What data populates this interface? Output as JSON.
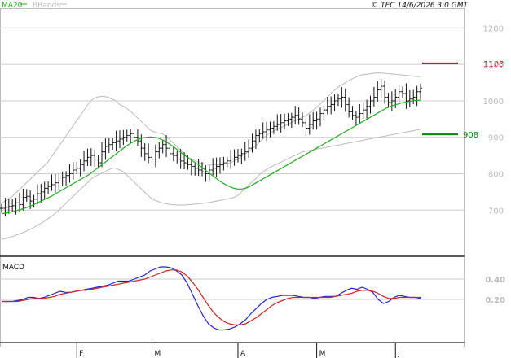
{
  "header": {
    "ma_label": "MA20",
    "bb_label": "BBands",
    "copyright": "© TEC 14/6/2026 3:0 GMT"
  },
  "chart_data": [
    {
      "type": "ohlc",
      "panel": "price",
      "x_labels": [
        {
          "label": "F",
          "index": 21
        },
        {
          "label": "M",
          "index": 42
        },
        {
          "label": "A",
          "index": 66
        },
        {
          "label": "M",
          "index": 88
        },
        {
          "label": "J",
          "index": 110
        }
      ],
      "ylim": [
        580,
        1250
      ],
      "yticks": [
        700,
        800,
        900,
        1000,
        1100,
        1200
      ],
      "ticks_shown_on_axis": [
        "700",
        "800",
        "900",
        "1000",
        "1100",
        "1200"
      ],
      "levels": [
        {
          "name": "resistance",
          "label": "1103",
          "value": 1103,
          "color": "#cc0000"
        },
        {
          "name": "support",
          "label": "908",
          "value": 908,
          "color": "#008800"
        }
      ],
      "series": [
        {
          "name": "MA20",
          "color": "#22aa22",
          "values": [
            690,
            692,
            694,
            696,
            699,
            702,
            705,
            709,
            713,
            718,
            723,
            728,
            733,
            738,
            744,
            750,
            756,
            762,
            768,
            774,
            780,
            786,
            792,
            798,
            806,
            814,
            822,
            830,
            838,
            846,
            854,
            862,
            870,
            878,
            884,
            890,
            895,
            898,
            900,
            901,
            900,
            898,
            894,
            889,
            882,
            875,
            867,
            859,
            851,
            843,
            836,
            829,
            822,
            814,
            806,
            798,
            790,
            782,
            775,
            769,
            764,
            760,
            758,
            758,
            760,
            764,
            770,
            776,
            782,
            788,
            794,
            800,
            806,
            812,
            818,
            824,
            830,
            836,
            842,
            848,
            854,
            860,
            866,
            872,
            878,
            884,
            890,
            896,
            902,
            908,
            914,
            920,
            926,
            932,
            938,
            944,
            950,
            956,
            962,
            968,
            974,
            980,
            984,
            988,
            991,
            994,
            996,
            998,
            1000,
            1001,
            1002
          ]
        },
        {
          "name": "BBands upper",
          "values": [
            720,
            725,
            732,
            740,
            750,
            760,
            770,
            780,
            790,
            800,
            810,
            820,
            830,
            845,
            860,
            875,
            890,
            905,
            920,
            935,
            950,
            965,
            980,
            995,
            1005,
            1010,
            1012,
            1012,
            1010,
            1005,
            1000,
            990,
            985,
            978,
            970,
            960,
            950,
            940,
            930,
            920,
            915,
            912,
            910,
            905,
            895,
            885,
            875,
            865,
            855,
            845,
            840,
            835,
            830,
            828,
            826,
            825,
            825,
            825,
            826,
            828,
            830,
            835,
            840,
            848,
            855,
            862,
            870,
            880,
            890,
            900,
            908,
            915,
            920,
            925,
            930,
            935,
            940,
            945,
            950,
            955,
            960,
            968,
            976,
            985,
            995,
            1005,
            1015,
            1025,
            1035,
            1042,
            1048,
            1055,
            1060,
            1065,
            1070,
            1072,
            1073,
            1075,
            1076,
            1077,
            1076,
            1075,
            1074,
            1073,
            1072,
            1071,
            1070,
            1069,
            1068,
            1067,
            1066
          ]
        },
        {
          "name": "BBands lower",
          "values": [
            620,
            622,
            625,
            628,
            632,
            636,
            640,
            645,
            650,
            656,
            662,
            668,
            675,
            682,
            690,
            700,
            710,
            720,
            730,
            740,
            750,
            760,
            770,
            780,
            790,
            795,
            800,
            805,
            810,
            815,
            815,
            810,
            805,
            795,
            785,
            775,
            765,
            755,
            745,
            735,
            728,
            724,
            720,
            718,
            716,
            715,
            714,
            714,
            714,
            715,
            716,
            717,
            718,
            719,
            720,
            722,
            724,
            726,
            728,
            730,
            732,
            735,
            740,
            750,
            760,
            770,
            780,
            790,
            800,
            808,
            815,
            820,
            825,
            830,
            835,
            840,
            845,
            850,
            855,
            860,
            862,
            864,
            866,
            868,
            870,
            872,
            874,
            876,
            878,
            880,
            882,
            884,
            886,
            888,
            890,
            892,
            894,
            896,
            898,
            900,
            902,
            904,
            906,
            908,
            910,
            912,
            914,
            916,
            918,
            920,
            922
          ]
        },
        {
          "name": "Close",
          "values": [
            705,
            708,
            710,
            712,
            720,
            715,
            735,
            738,
            725,
            730,
            745,
            750,
            760,
            765,
            770,
            775,
            780,
            790,
            795,
            800,
            810,
            815,
            825,
            835,
            845,
            850,
            840,
            830,
            860,
            875,
            880,
            885,
            890,
            895,
            900,
            905,
            910,
            900,
            890,
            870,
            855,
            845,
            840,
            860,
            870,
            880,
            870,
            855,
            850,
            840,
            835,
            830,
            825,
            820,
            815,
            810,
            805,
            800,
            810,
            815,
            820,
            825,
            830,
            835,
            840,
            845,
            850,
            855,
            860,
            870,
            890,
            905,
            910,
            915,
            920,
            925,
            930,
            935,
            940,
            945,
            950,
            955,
            960,
            950,
            940,
            925,
            935,
            945,
            950,
            965,
            975,
            985,
            990,
            1000,
            1005,
            1010,
            990,
            970,
            960,
            955,
            965,
            975,
            985,
            1000,
            1010,
            1030,
            1040,
            1010,
            995,
            1000,
            1010,
            1025,
            1020,
            1000,
            1005,
            1010,
            1025,
            1035
          ]
        }
      ]
    },
    {
      "type": "line",
      "panel": "macd",
      "title": "MACD",
      "ylim": [
        -0.2,
        0.6
      ],
      "yticks": [
        0.2,
        0.4
      ],
      "ticks_shown_on_axis": [
        "0.20",
        "0.40"
      ],
      "series": [
        {
          "name": "MACD",
          "color": "#2222cc",
          "values": [
            0.18,
            0.18,
            0.18,
            0.19,
            0.2,
            0.22,
            0.22,
            0.21,
            0.22,
            0.24,
            0.26,
            0.28,
            0.27,
            0.27,
            0.28,
            0.29,
            0.3,
            0.31,
            0.32,
            0.33,
            0.34,
            0.36,
            0.38,
            0.38,
            0.38,
            0.4,
            0.42,
            0.44,
            0.48,
            0.5,
            0.52,
            0.52,
            0.51,
            0.48,
            0.44,
            0.36,
            0.25,
            0.14,
            0.04,
            -0.04,
            -0.08,
            -0.1,
            -0.1,
            -0.09,
            -0.07,
            -0.04,
            0.0,
            0.06,
            0.11,
            0.16,
            0.2,
            0.22,
            0.23,
            0.24,
            0.24,
            0.24,
            0.23,
            0.22,
            0.22,
            0.21,
            0.22,
            0.23,
            0.23,
            0.23,
            0.26,
            0.29,
            0.31,
            0.3,
            0.32,
            0.3,
            0.27,
            0.2,
            0.16,
            0.18,
            0.22,
            0.24,
            0.23,
            0.22,
            0.22,
            0.21
          ]
        },
        {
          "name": "Signal",
          "color": "#cc2222",
          "values": [
            0.18,
            0.18,
            0.18,
            0.18,
            0.19,
            0.2,
            0.21,
            0.21,
            0.21,
            0.22,
            0.23,
            0.25,
            0.26,
            0.27,
            0.28,
            0.29,
            0.29,
            0.3,
            0.31,
            0.32,
            0.33,
            0.34,
            0.35,
            0.36,
            0.37,
            0.38,
            0.39,
            0.4,
            0.42,
            0.44,
            0.46,
            0.48,
            0.49,
            0.49,
            0.47,
            0.43,
            0.37,
            0.3,
            0.22,
            0.14,
            0.07,
            0.02,
            -0.02,
            -0.04,
            -0.05,
            -0.05,
            -0.04,
            -0.01,
            0.02,
            0.06,
            0.1,
            0.14,
            0.17,
            0.19,
            0.21,
            0.22,
            0.22,
            0.22,
            0.22,
            0.22,
            0.22,
            0.22,
            0.22,
            0.23,
            0.24,
            0.25,
            0.26,
            0.28,
            0.29,
            0.29,
            0.28,
            0.26,
            0.23,
            0.21,
            0.21,
            0.22,
            0.22,
            0.22,
            0.22,
            0.22
          ]
        }
      ]
    }
  ]
}
